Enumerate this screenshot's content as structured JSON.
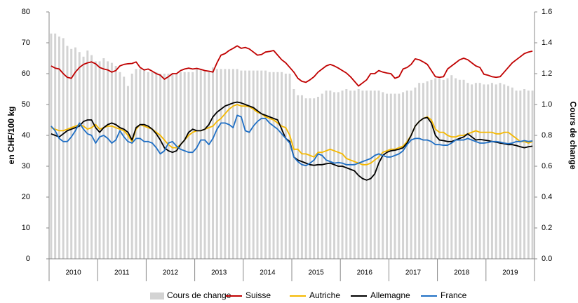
{
  "chart_data": {
    "type": "bar-line",
    "y_label": "en CHF/100 kg",
    "y2_label": "Cours de change",
    "categories": [
      null,
      null,
      null,
      null,
      null,
      null,
      "2010",
      null,
      null,
      null,
      null,
      null,
      null,
      null,
      null,
      null,
      null,
      null,
      "2011",
      null,
      null,
      null,
      null,
      null,
      null,
      null,
      null,
      null,
      null,
      null,
      "2012",
      null,
      null,
      null,
      null,
      null,
      null,
      null,
      null,
      null,
      null,
      null,
      "2013",
      null,
      null,
      null,
      null,
      null,
      null,
      null,
      null,
      null,
      null,
      null,
      "2014",
      null,
      null,
      null,
      null,
      null,
      null,
      null,
      null,
      null,
      null,
      null,
      "2015",
      null,
      null,
      null,
      null,
      null,
      null,
      null,
      null,
      null,
      null,
      null,
      "2016",
      null,
      null,
      null,
      null,
      null,
      null,
      null,
      null,
      null,
      null,
      null,
      "2017",
      null,
      null,
      null,
      null,
      null,
      null,
      null,
      null,
      null,
      null,
      null,
      "2018",
      null,
      null,
      null,
      null,
      null,
      null,
      null,
      null,
      null,
      null,
      null,
      "2019",
      null,
      null,
      null,
      null,
      null
    ],
    "ylim": [
      0,
      80
    ],
    "yticks": [
      0,
      10,
      20,
      30,
      40,
      50,
      60,
      70,
      80
    ],
    "y2lim": [
      0,
      1.6
    ],
    "y2ticks": [
      {
        "value": 0,
        "label": "0.0"
      },
      0.2,
      0.4,
      0.6,
      0.8,
      {
        "value": 1,
        "label": "1.0"
      },
      1.2,
      1.4,
      1.6
    ],
    "grid": false,
    "series": [
      {
        "name": "Cours de change",
        "kind": "bar",
        "axis": "y2",
        "color": "#d3d3d3",
        "values": [
          1.46,
          1.46,
          1.44,
          1.43,
          1.38,
          1.36,
          1.37,
          1.34,
          1.31,
          1.35,
          1.32,
          1.28,
          1.28,
          1.3,
          1.28,
          1.27,
          1.25,
          1.21,
          1.18,
          1.12,
          1.2,
          1.23,
          1.23,
          1.23,
          1.21,
          1.21,
          1.21,
          1.2,
          1.2,
          1.2,
          1.2,
          1.2,
          1.21,
          1.21,
          1.21,
          1.21,
          1.23,
          1.23,
          1.22,
          1.22,
          1.24,
          1.23,
          1.23,
          1.23,
          1.23,
          1.23,
          1.23,
          1.22,
          1.22,
          1.22,
          1.22,
          1.22,
          1.22,
          1.22,
          1.21,
          1.21,
          1.21,
          1.21,
          1.2,
          1.2,
          1.1,
          1.06,
          1.06,
          1.04,
          1.04,
          1.04,
          1.05,
          1.07,
          1.09,
          1.09,
          1.08,
          1.08,
          1.09,
          1.1,
          1.09,
          1.09,
          1.1,
          1.09,
          1.09,
          1.09,
          1.09,
          1.09,
          1.08,
          1.07,
          1.07,
          1.07,
          1.07,
          1.08,
          1.09,
          1.09,
          1.11,
          1.14,
          1.14,
          1.15,
          1.16,
          1.17,
          1.17,
          1.16,
          1.17,
          1.19,
          1.17,
          1.16,
          1.16,
          1.14,
          1.13,
          1.14,
          1.14,
          1.13,
          1.13,
          1.14,
          1.13,
          1.14,
          1.13,
          1.12,
          1.11,
          1.09,
          1.09,
          1.1,
          1.09,
          1.09
        ]
      },
      {
        "name": "Suisse",
        "kind": "line",
        "color": "#c00000",
        "values": [
          62.5,
          61.8,
          61.5,
          60,
          58.8,
          58.5,
          60.5,
          62,
          63,
          63.5,
          63.8,
          63.2,
          62,
          61.5,
          61.2,
          60.5,
          61,
          62.5,
          63,
          63.2,
          63.3,
          63.8,
          62,
          61.2,
          61.5,
          60.8,
          60,
          59.5,
          58.2,
          59,
          60,
          60,
          61,
          61.5,
          61.8,
          61.5,
          61.7,
          61.4,
          61,
          60.8,
          60.5,
          63.5,
          66,
          66.5,
          67.5,
          68.2,
          69,
          68.2,
          68.5,
          68,
          67,
          66,
          66.2,
          67,
          67.2,
          67.5,
          66,
          64.5,
          63.5,
          62,
          60.5,
          58.5,
          57.5,
          57.2,
          58,
          59,
          60.5,
          61.5,
          62.5,
          63,
          62.5,
          61.8,
          61,
          60.2,
          59,
          57.5,
          56,
          57,
          58,
          60,
          60,
          61,
          60.5,
          60.2,
          60,
          58.5,
          59,
          61.5,
          62,
          63,
          64.8,
          64.5,
          63.8,
          63,
          61,
          59,
          58.8,
          59,
          61.5,
          62.5,
          63.5,
          64.5,
          65,
          64.5,
          63.5,
          62.5,
          62,
          59.8,
          59.5,
          59,
          58.8,
          59,
          60.5,
          62,
          63.5,
          64.5,
          65.5,
          66.5,
          67,
          67.3
        ]
      },
      {
        "name": "Autriche",
        "kind": "line",
        "color": "#f5b800",
        "values": [
          42.5,
          42,
          41.5,
          41.5,
          42,
          42.5,
          43,
          43.5,
          43,
          42,
          42.5,
          43.5,
          42,
          42.5,
          43,
          43,
          42.5,
          42,
          41.5,
          40,
          38,
          42,
          43.5,
          43,
          42.5,
          42,
          41,
          40,
          38.5,
          37,
          36,
          36,
          37,
          38.5,
          40,
          41,
          41.5,
          41.5,
          42,
          42.5,
          43,
          44.5,
          45.5,
          47,
          48.5,
          49.5,
          50,
          49.5,
          49.5,
          49.3,
          48.5,
          47.5,
          47,
          46,
          45.5,
          45,
          44,
          43,
          42.5,
          40,
          35.5,
          35.5,
          34,
          34,
          33.5,
          33,
          34.5,
          34.5,
          35,
          35.5,
          35,
          34.5,
          34,
          32.5,
          32,
          31.5,
          31,
          30.5,
          30.5,
          31,
          32,
          33,
          34.5,
          35,
          35.5,
          35.5,
          36,
          36.5,
          38,
          40,
          43,
          44.5,
          45.5,
          46,
          45,
          42,
          41,
          41,
          40,
          39.5,
          39.5,
          40,
          40,
          40.5,
          41,
          41.5,
          41,
          41,
          41,
          41,
          40.5,
          40.5,
          41,
          41,
          40,
          39,
          38,
          38,
          37.5,
          38
        ]
      },
      {
        "name": "Allemagne",
        "kind": "line",
        "color": "#000000",
        "values": [
          40.5,
          40,
          39.5,
          40.5,
          41.5,
          42,
          42.5,
          43,
          44.5,
          45,
          45,
          42.5,
          41,
          42.5,
          43.5,
          44,
          43.5,
          42.5,
          42,
          41,
          38.5,
          42.5,
          43.5,
          43.5,
          43,
          42,
          40.5,
          38.5,
          36,
          35,
          34.5,
          35,
          37,
          38.5,
          41,
          42,
          41.5,
          41.5,
          42,
          43.5,
          46,
          47.5,
          48.5,
          49.5,
          50,
          50.5,
          50.8,
          50.5,
          50,
          49.5,
          49,
          48,
          47,
          46.5,
          46,
          45.5,
          45,
          42,
          39,
          38,
          33,
          32,
          31.5,
          31,
          30.5,
          30.3,
          30.5,
          30.5,
          30.8,
          31,
          30.5,
          30,
          30,
          29.5,
          29,
          28.5,
          27,
          26,
          25.5,
          26,
          27.5,
          31,
          33.5,
          34.5,
          35,
          35.2,
          35.5,
          36,
          37.5,
          40,
          43,
          44.5,
          45.5,
          45.8,
          44,
          40,
          38.5,
          38.3,
          38,
          38,
          38.5,
          39,
          39.5,
          40.5,
          39.5,
          38.5,
          38.7,
          38.5,
          38.3,
          38,
          37.8,
          37.5,
          37.3,
          37,
          37,
          36.7,
          36.3,
          36,
          36.3,
          36.5
        ]
      },
      {
        "name": "France",
        "kind": "line",
        "color": "#1f6fc5",
        "values": [
          43,
          41.5,
          39,
          38,
          38,
          39.5,
          41.5,
          44,
          42,
          40.5,
          40,
          37.5,
          39.5,
          40,
          39,
          37.5,
          38.5,
          41.5,
          39.5,
          38,
          37.5,
          39,
          39,
          38,
          38,
          37.5,
          36,
          34,
          35,
          37.5,
          38,
          36.5,
          35.5,
          35,
          34.5,
          34.5,
          36,
          38.5,
          38.5,
          37,
          39,
          42,
          44,
          44,
          43.5,
          42.5,
          46.5,
          46,
          41.5,
          41,
          43,
          44.5,
          45.5,
          45.5,
          44,
          43,
          42,
          40.5,
          39,
          37.5,
          33,
          31.5,
          30.5,
          30.2,
          31,
          32,
          34,
          33.5,
          32,
          31.5,
          31,
          31.2,
          31,
          30.5,
          30.5,
          30.5,
          31,
          31.5,
          32,
          32.5,
          33.5,
          34,
          33.5,
          33,
          33,
          33.5,
          34,
          35,
          37,
          38.5,
          39,
          39,
          38.5,
          38.5,
          38,
          37,
          37,
          36.8,
          36.8,
          37.5,
          38.5,
          38.5,
          38.5,
          39,
          38.5,
          38,
          37.5,
          37.5,
          37.7,
          38,
          38,
          37.8,
          37.5,
          37.3,
          37.5,
          38,
          38,
          38.3,
          38,
          38.2
        ]
      }
    ]
  }
}
